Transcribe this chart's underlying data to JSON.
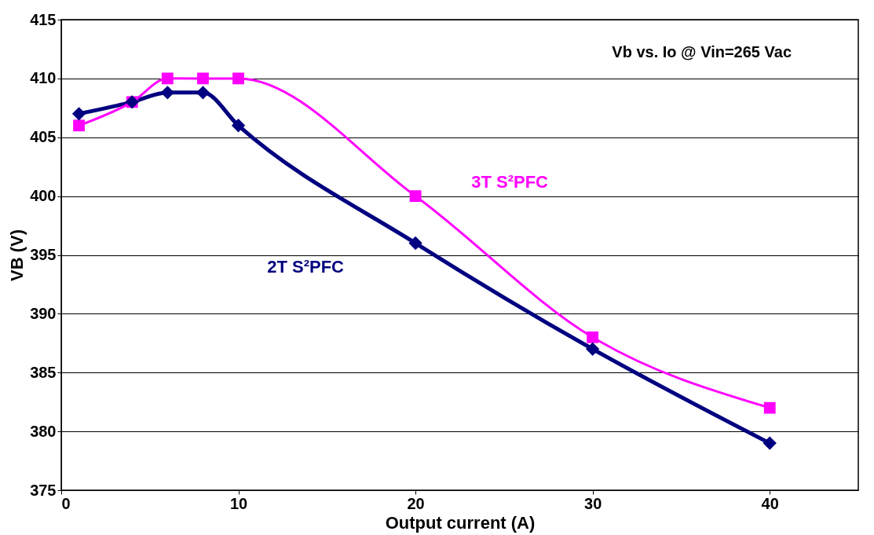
{
  "chart_data": {
    "type": "line",
    "title": "Vb vs. Io @ Vin=265 Vac",
    "xlabel": "Output current (A)",
    "ylabel": "VB (V)",
    "xlim": [
      0,
      45
    ],
    "xticks": [
      0,
      10,
      20,
      30,
      40
    ],
    "ylim": [
      375,
      415
    ],
    "yticks": [
      375,
      380,
      385,
      390,
      395,
      400,
      405,
      410,
      415
    ],
    "grid": "y",
    "legend": false,
    "series": [
      {
        "name": "2T S²PFC",
        "color": "#000080",
        "marker": "diamond",
        "x": [
          1,
          4,
          6,
          8,
          10,
          20,
          30,
          40
        ],
        "values": [
          407,
          408,
          408.8,
          408.8,
          406,
          396,
          387,
          379
        ]
      },
      {
        "name": "3T S²PFC",
        "color": "#ff00ff",
        "marker": "square",
        "x": [
          1,
          4,
          6,
          8,
          10,
          20,
          30,
          40
        ],
        "values": [
          406,
          408,
          410,
          410,
          410,
          400,
          388,
          382
        ]
      }
    ]
  }
}
